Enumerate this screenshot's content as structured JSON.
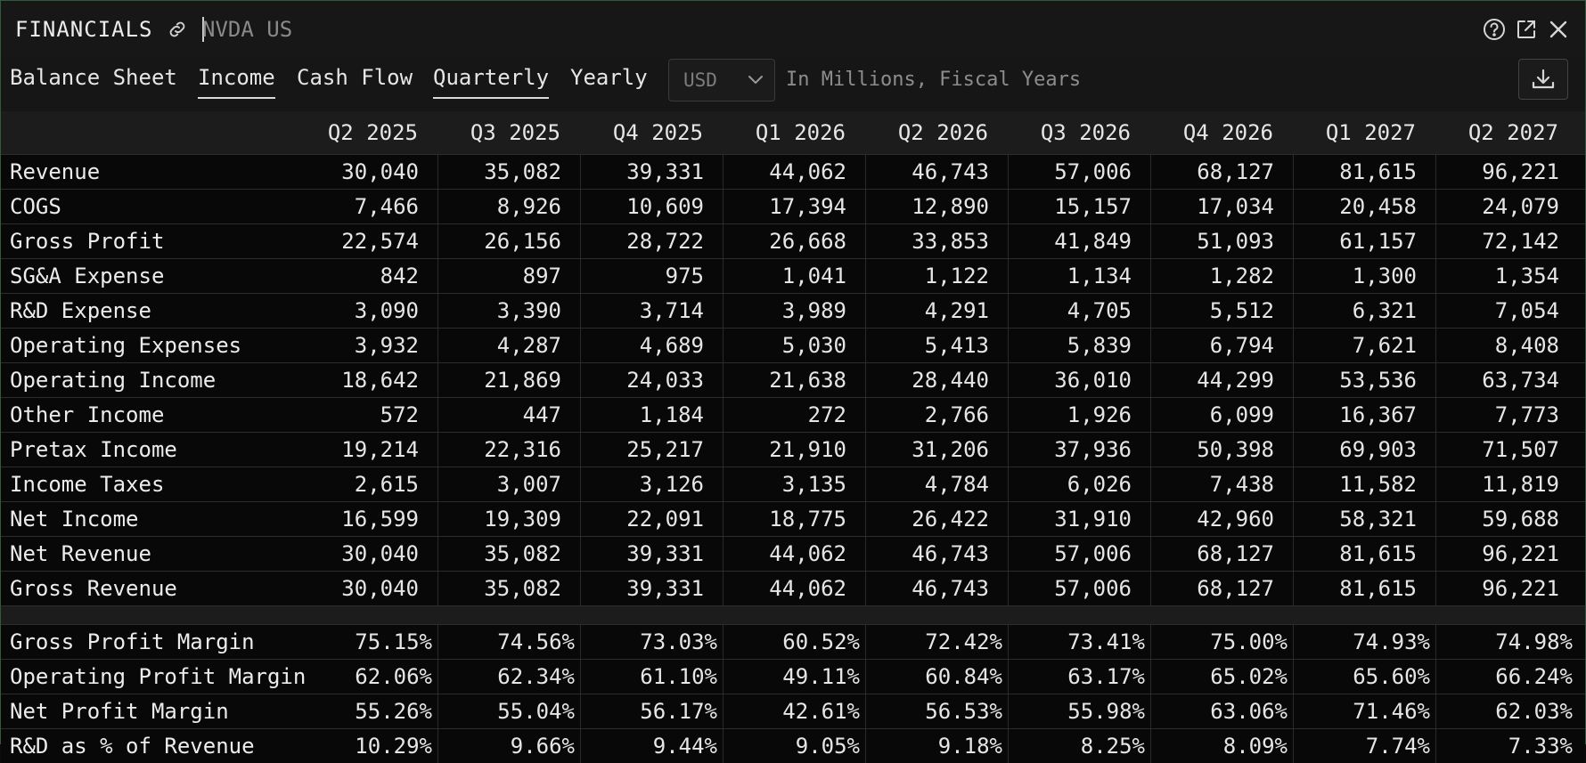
{
  "window": {
    "title": "FINANCIALS",
    "ticker": "NVDA US",
    "icons": [
      "link-icon",
      "help-icon",
      "popout-icon",
      "close-icon"
    ]
  },
  "toolbar": {
    "tabs": [
      {
        "label": "Balance Sheet",
        "active": false
      },
      {
        "label": "Income",
        "active": true
      },
      {
        "label": "Cash Flow",
        "active": false
      }
    ],
    "periods": [
      {
        "label": "Quarterly",
        "active": true
      },
      {
        "label": "Yearly",
        "active": false
      }
    ],
    "currency": "USD",
    "units_note": "In Millions, Fiscal Years",
    "download_icon": "download-icon"
  },
  "table": {
    "columns": [
      "Q2 2025",
      "Q3 2025",
      "Q4 2025",
      "Q1 2026",
      "Q2 2026",
      "Q3 2026",
      "Q4 2026",
      "Q1 2027",
      "Q2 2027"
    ],
    "rows": [
      {
        "label": "Revenue",
        "values": [
          "30,040",
          "35,082",
          "39,331",
          "44,062",
          "46,743",
          "57,006",
          "68,127",
          "81,615",
          "96,221"
        ]
      },
      {
        "label": "COGS",
        "values": [
          "7,466",
          "8,926",
          "10,609",
          "17,394",
          "12,890",
          "15,157",
          "17,034",
          "20,458",
          "24,079"
        ]
      },
      {
        "label": "Gross Profit",
        "values": [
          "22,574",
          "26,156",
          "28,722",
          "26,668",
          "33,853",
          "41,849",
          "51,093",
          "61,157",
          "72,142"
        ]
      },
      {
        "label": "SG&A Expense",
        "values": [
          "842",
          "897",
          "975",
          "1,041",
          "1,122",
          "1,134",
          "1,282",
          "1,300",
          "1,354"
        ]
      },
      {
        "label": "R&D Expense",
        "values": [
          "3,090",
          "3,390",
          "3,714",
          "3,989",
          "4,291",
          "4,705",
          "5,512",
          "6,321",
          "7,054"
        ]
      },
      {
        "label": "Operating Expenses",
        "values": [
          "3,932",
          "4,287",
          "4,689",
          "5,030",
          "5,413",
          "5,839",
          "6,794",
          "7,621",
          "8,408"
        ]
      },
      {
        "label": "Operating Income",
        "values": [
          "18,642",
          "21,869",
          "24,033",
          "21,638",
          "28,440",
          "36,010",
          "44,299",
          "53,536",
          "63,734"
        ]
      },
      {
        "label": "Other Income",
        "values": [
          "572",
          "447",
          "1,184",
          "272",
          "2,766",
          "1,926",
          "6,099",
          "16,367",
          "7,773"
        ]
      },
      {
        "label": "Pretax Income",
        "values": [
          "19,214",
          "22,316",
          "25,217",
          "21,910",
          "31,206",
          "37,936",
          "50,398",
          "69,903",
          "71,507"
        ]
      },
      {
        "label": "Income Taxes",
        "values": [
          "2,615",
          "3,007",
          "3,126",
          "3,135",
          "4,784",
          "6,026",
          "7,438",
          "11,582",
          "11,819"
        ]
      },
      {
        "label": "Net Income",
        "values": [
          "16,599",
          "19,309",
          "22,091",
          "18,775",
          "26,422",
          "31,910",
          "42,960",
          "58,321",
          "59,688"
        ]
      },
      {
        "label": "Net Revenue",
        "values": [
          "30,040",
          "35,082",
          "39,331",
          "44,062",
          "46,743",
          "57,006",
          "68,127",
          "81,615",
          "96,221"
        ]
      },
      {
        "label": "Gross Revenue",
        "values": [
          "30,040",
          "35,082",
          "39,331",
          "44,062",
          "46,743",
          "57,006",
          "68,127",
          "81,615",
          "96,221"
        ]
      }
    ],
    "ratio_rows": [
      {
        "label": "Gross Profit Margin",
        "values": [
          "75.15%",
          "74.56%",
          "73.03%",
          "60.52%",
          "72.42%",
          "73.41%",
          "75.00%",
          "74.93%",
          "74.98%"
        ]
      },
      {
        "label": "Operating Profit Margin",
        "values": [
          "62.06%",
          "62.34%",
          "61.10%",
          "49.11%",
          "60.84%",
          "63.17%",
          "65.02%",
          "65.60%",
          "66.24%"
        ]
      },
      {
        "label": "Net Profit Margin",
        "values": [
          "55.26%",
          "55.04%",
          "56.17%",
          "42.61%",
          "56.53%",
          "55.98%",
          "63.06%",
          "71.46%",
          "62.03%"
        ]
      },
      {
        "label": "R&D as % of Revenue",
        "values": [
          "10.29%",
          "9.66%",
          "9.44%",
          "9.05%",
          "9.18%",
          "8.25%",
          "8.09%",
          "7.74%",
          "7.33%"
        ]
      }
    ]
  }
}
